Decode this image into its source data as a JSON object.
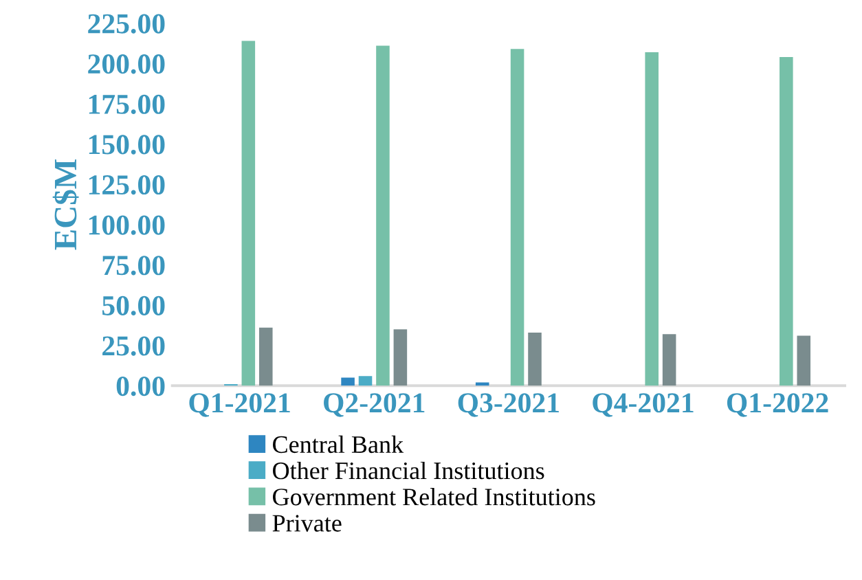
{
  "chart_data": {
    "type": "bar",
    "ylabel": "EC$M",
    "categories": [
      "Q1-2021",
      "Q2-2021",
      "Q3-2021",
      "Q4-2021",
      "Q1-2022"
    ],
    "series": [
      {
        "name": "Central Bank",
        "color": "#2e86c1",
        "values": [
          null,
          5,
          2,
          null,
          null
        ]
      },
      {
        "name": "Other Financial Institutions",
        "color": "#4bacc6",
        "values": [
          1,
          6,
          null,
          null,
          null
        ]
      },
      {
        "name": "Government Related Institutions",
        "color": "#76c0a8",
        "values": [
          214,
          211,
          209,
          207,
          204
        ]
      },
      {
        "name": "Private",
        "color": "#7a8c8e",
        "values": [
          36,
          35,
          33,
          32,
          31
        ]
      }
    ],
    "ylim": [
      0,
      225
    ],
    "yticks": [
      {
        "value": 0,
        "label": "0.00"
      },
      {
        "value": 25,
        "label": "25.00"
      },
      {
        "value": 50,
        "label": "50.00"
      },
      {
        "value": 75,
        "label": "75.00"
      },
      {
        "value": 100,
        "label": "100.00"
      },
      {
        "value": 125,
        "label": "125.00"
      },
      {
        "value": 150,
        "label": "150.00"
      },
      {
        "value": 175,
        "label": "175.00"
      },
      {
        "value": 200,
        "label": "200.00"
      },
      {
        "value": 225,
        "label": "225.00"
      }
    ],
    "grid": false,
    "legend": "bottom"
  }
}
